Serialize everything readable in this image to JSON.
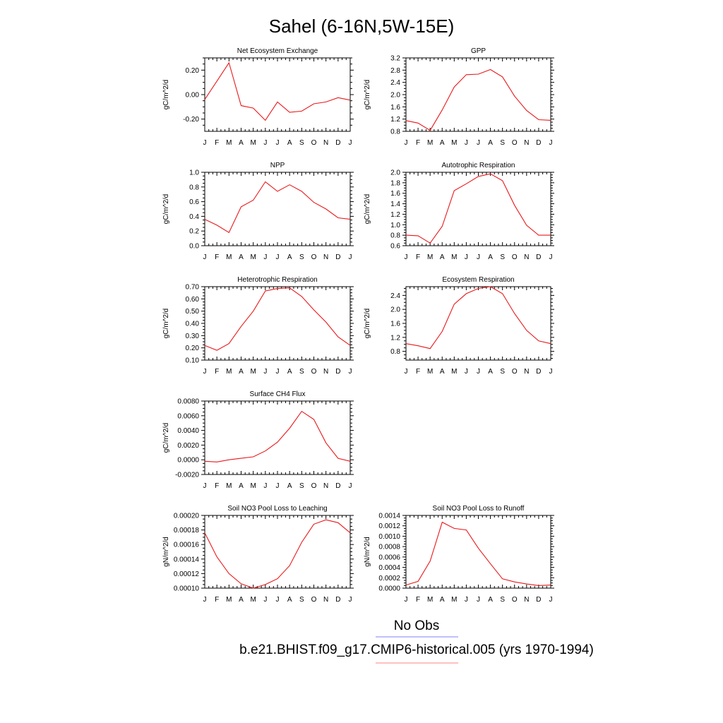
{
  "title": "Sahel (6-16N,5W-15E)",
  "legend": {
    "entries": [
      {
        "label": "No Obs",
        "color": "#8080ff"
      },
      {
        "label": "b.e21.BHIST.f09_g17.CMIP6-historical.005 (yrs 1970-1994)",
        "color": "#ff8080"
      }
    ]
  },
  "colors": {
    "series": "#e8191b",
    "axis": "#000000"
  },
  "chart_data": [
    {
      "type": "line",
      "title": "Net Ecosystem Exchange",
      "xlabel": "",
      "ylabel": "gC/m^2/d",
      "categories": [
        "J",
        "F",
        "M",
        "A",
        "M",
        "J",
        "J",
        "A",
        "S",
        "O",
        "N",
        "D",
        "J"
      ],
      "values": [
        -0.04,
        0.11,
        0.26,
        -0.09,
        -0.11,
        -0.21,
        -0.06,
        -0.145,
        -0.135,
        -0.075,
        -0.06,
        -0.025,
        -0.045
      ],
      "ylim": [
        -0.3,
        0.3
      ],
      "yticks": [
        -0.2,
        0.0,
        0.2
      ],
      "yticklabels": [
        "-0.20",
        "0.00",
        "0.20"
      ]
    },
    {
      "type": "line",
      "title": "GPP",
      "xlabel": "",
      "ylabel": "gC/m^2/d",
      "categories": [
        "J",
        "F",
        "M",
        "A",
        "M",
        "J",
        "J",
        "A",
        "S",
        "O",
        "N",
        "D",
        "J"
      ],
      "values": [
        1.15,
        1.07,
        0.83,
        1.5,
        2.25,
        2.65,
        2.67,
        2.82,
        2.58,
        1.95,
        1.48,
        1.18,
        1.16
      ],
      "ylim": [
        0.8,
        3.2
      ],
      "yticks": [
        0.8,
        1.2,
        1.6,
        2.0,
        2.4,
        2.8,
        3.2
      ],
      "yticklabels": [
        "0.8",
        "1.2",
        "1.6",
        "2.0",
        "2.4",
        "2.8",
        "3.2"
      ]
    },
    {
      "type": "line",
      "title": "NPP",
      "xlabel": "",
      "ylabel": "gC/m^2/d",
      "categories": [
        "J",
        "F",
        "M",
        "A",
        "M",
        "J",
        "J",
        "A",
        "S",
        "O",
        "N",
        "D",
        "J"
      ],
      "values": [
        0.36,
        0.28,
        0.18,
        0.53,
        0.62,
        0.87,
        0.74,
        0.83,
        0.74,
        0.59,
        0.5,
        0.38,
        0.36
      ],
      "ylim": [
        0.0,
        1.0
      ],
      "yticks": [
        0.0,
        0.2,
        0.4,
        0.6,
        0.8,
        1.0
      ],
      "yticklabels": [
        "0.0",
        "0.2",
        "0.4",
        "0.6",
        "0.8",
        "1.0"
      ]
    },
    {
      "type": "line",
      "title": "Autotrophic Respiration",
      "xlabel": "",
      "ylabel": "gC/m^2/d",
      "categories": [
        "J",
        "F",
        "M",
        "A",
        "M",
        "J",
        "J",
        "A",
        "S",
        "O",
        "N",
        "D",
        "J"
      ],
      "values": [
        0.8,
        0.79,
        0.65,
        0.97,
        1.65,
        1.78,
        1.92,
        1.97,
        1.84,
        1.37,
        0.99,
        0.8,
        0.8
      ],
      "ylim": [
        0.6,
        2.0
      ],
      "yticks": [
        0.6,
        0.8,
        1.0,
        1.2,
        1.4,
        1.6,
        1.8,
        2.0
      ],
      "yticklabels": [
        "0.6",
        "0.8",
        "1.0",
        "1.2",
        "1.4",
        "1.6",
        "1.8",
        "2.0"
      ]
    },
    {
      "type": "line",
      "title": "Heterotrophic Respiration",
      "xlabel": "",
      "ylabel": "gC/m^2/d",
      "categories": [
        "J",
        "F",
        "M",
        "A",
        "M",
        "J",
        "J",
        "A",
        "S",
        "O",
        "N",
        "D",
        "J"
      ],
      "values": [
        0.22,
        0.18,
        0.235,
        0.375,
        0.5,
        0.665,
        0.685,
        0.69,
        0.62,
        0.51,
        0.41,
        0.29,
        0.22
      ],
      "ylim": [
        0.1,
        0.7
      ],
      "yticks": [
        0.1,
        0.2,
        0.3,
        0.4,
        0.5,
        0.6,
        0.7
      ],
      "yticklabels": [
        "0.10",
        "0.20",
        "0.30",
        "0.40",
        "0.50",
        "0.60",
        "0.70"
      ]
    },
    {
      "type": "line",
      "title": "Ecosystem Respiration",
      "xlabel": "",
      "ylabel": "gC/m^2/d",
      "categories": [
        "J",
        "F",
        "M",
        "A",
        "M",
        "J",
        "J",
        "A",
        "S",
        "O",
        "N",
        "D",
        "J"
      ],
      "values": [
        1.02,
        0.96,
        0.88,
        1.37,
        2.15,
        2.45,
        2.6,
        2.65,
        2.45,
        1.88,
        1.4,
        1.1,
        1.02
      ],
      "ylim": [
        0.55,
        2.65
      ],
      "yticks": [
        0.8,
        1.2,
        1.6,
        2.0,
        2.4
      ],
      "yticklabels": [
        "0.8",
        "1.2",
        "1.6",
        "2.0",
        "2.4"
      ]
    },
    {
      "type": "line",
      "title": "Surface CH4 Flux",
      "xlabel": "",
      "ylabel": "gC/m^2/d",
      "categories": [
        "J",
        "F",
        "M",
        "A",
        "M",
        "J",
        "J",
        "A",
        "S",
        "O",
        "N",
        "D",
        "J"
      ],
      "values": [
        -0.0002,
        -0.0003,
        0.0,
        0.0002,
        0.0004,
        0.0012,
        0.0024,
        0.0043,
        0.0066,
        0.0055,
        0.0023,
        0.0002,
        -0.0002
      ],
      "ylim": [
        -0.002,
        0.008
      ],
      "yticks": [
        -0.002,
        0.0,
        0.002,
        0.004,
        0.006,
        0.008
      ],
      "yticklabels": [
        "-0.0020",
        "0.0000",
        "0.0020",
        "0.0040",
        "0.0060",
        "0.0080"
      ]
    },
    {
      "type": "line",
      "title": "Soil NO3 Pool Loss to Leaching",
      "xlabel": "",
      "ylabel": "gN/m^2/d",
      "categories": [
        "J",
        "F",
        "M",
        "A",
        "M",
        "J",
        "J",
        "A",
        "S",
        "O",
        "N",
        "D",
        "J"
      ],
      "values": [
        0.000176,
        0.000143,
        0.00012,
        0.000106,
        0.0001,
        0.000105,
        0.000113,
        0.000131,
        0.000163,
        0.000188,
        0.000194,
        0.00019,
        0.000176
      ],
      "ylim": [
        0.0001,
        0.0002
      ],
      "yticks": [
        0.0001,
        0.00012,
        0.00014,
        0.00016,
        0.00018,
        0.0002
      ],
      "yticklabels": [
        "0.00010",
        "0.00012",
        "0.00014",
        "0.00016",
        "0.00018",
        "0.00020"
      ]
    },
    {
      "type": "line",
      "title": "Soil NO3 Pool Loss to Runoff",
      "xlabel": "",
      "ylabel": "gN/m^2/d",
      "categories": [
        "J",
        "F",
        "M",
        "A",
        "M",
        "J",
        "J",
        "A",
        "S",
        "O",
        "N",
        "D",
        "J"
      ],
      "values": [
        6e-05,
        0.00013,
        0.00052,
        0.00127,
        0.00115,
        0.00112,
        0.00077,
        0.00047,
        0.00018,
        0.00012,
        8e-05,
        5e-05,
        6e-05
      ],
      "ylim": [
        0.0,
        0.0014
      ],
      "yticks": [
        0.0,
        0.0002,
        0.0004,
        0.0006,
        0.0008,
        0.001,
        0.0012,
        0.0014
      ],
      "yticklabels": [
        "0.0000",
        "0.0002",
        "0.0004",
        "0.0006",
        "0.0008",
        "0.0010",
        "0.0012",
        "0.0014"
      ]
    }
  ]
}
